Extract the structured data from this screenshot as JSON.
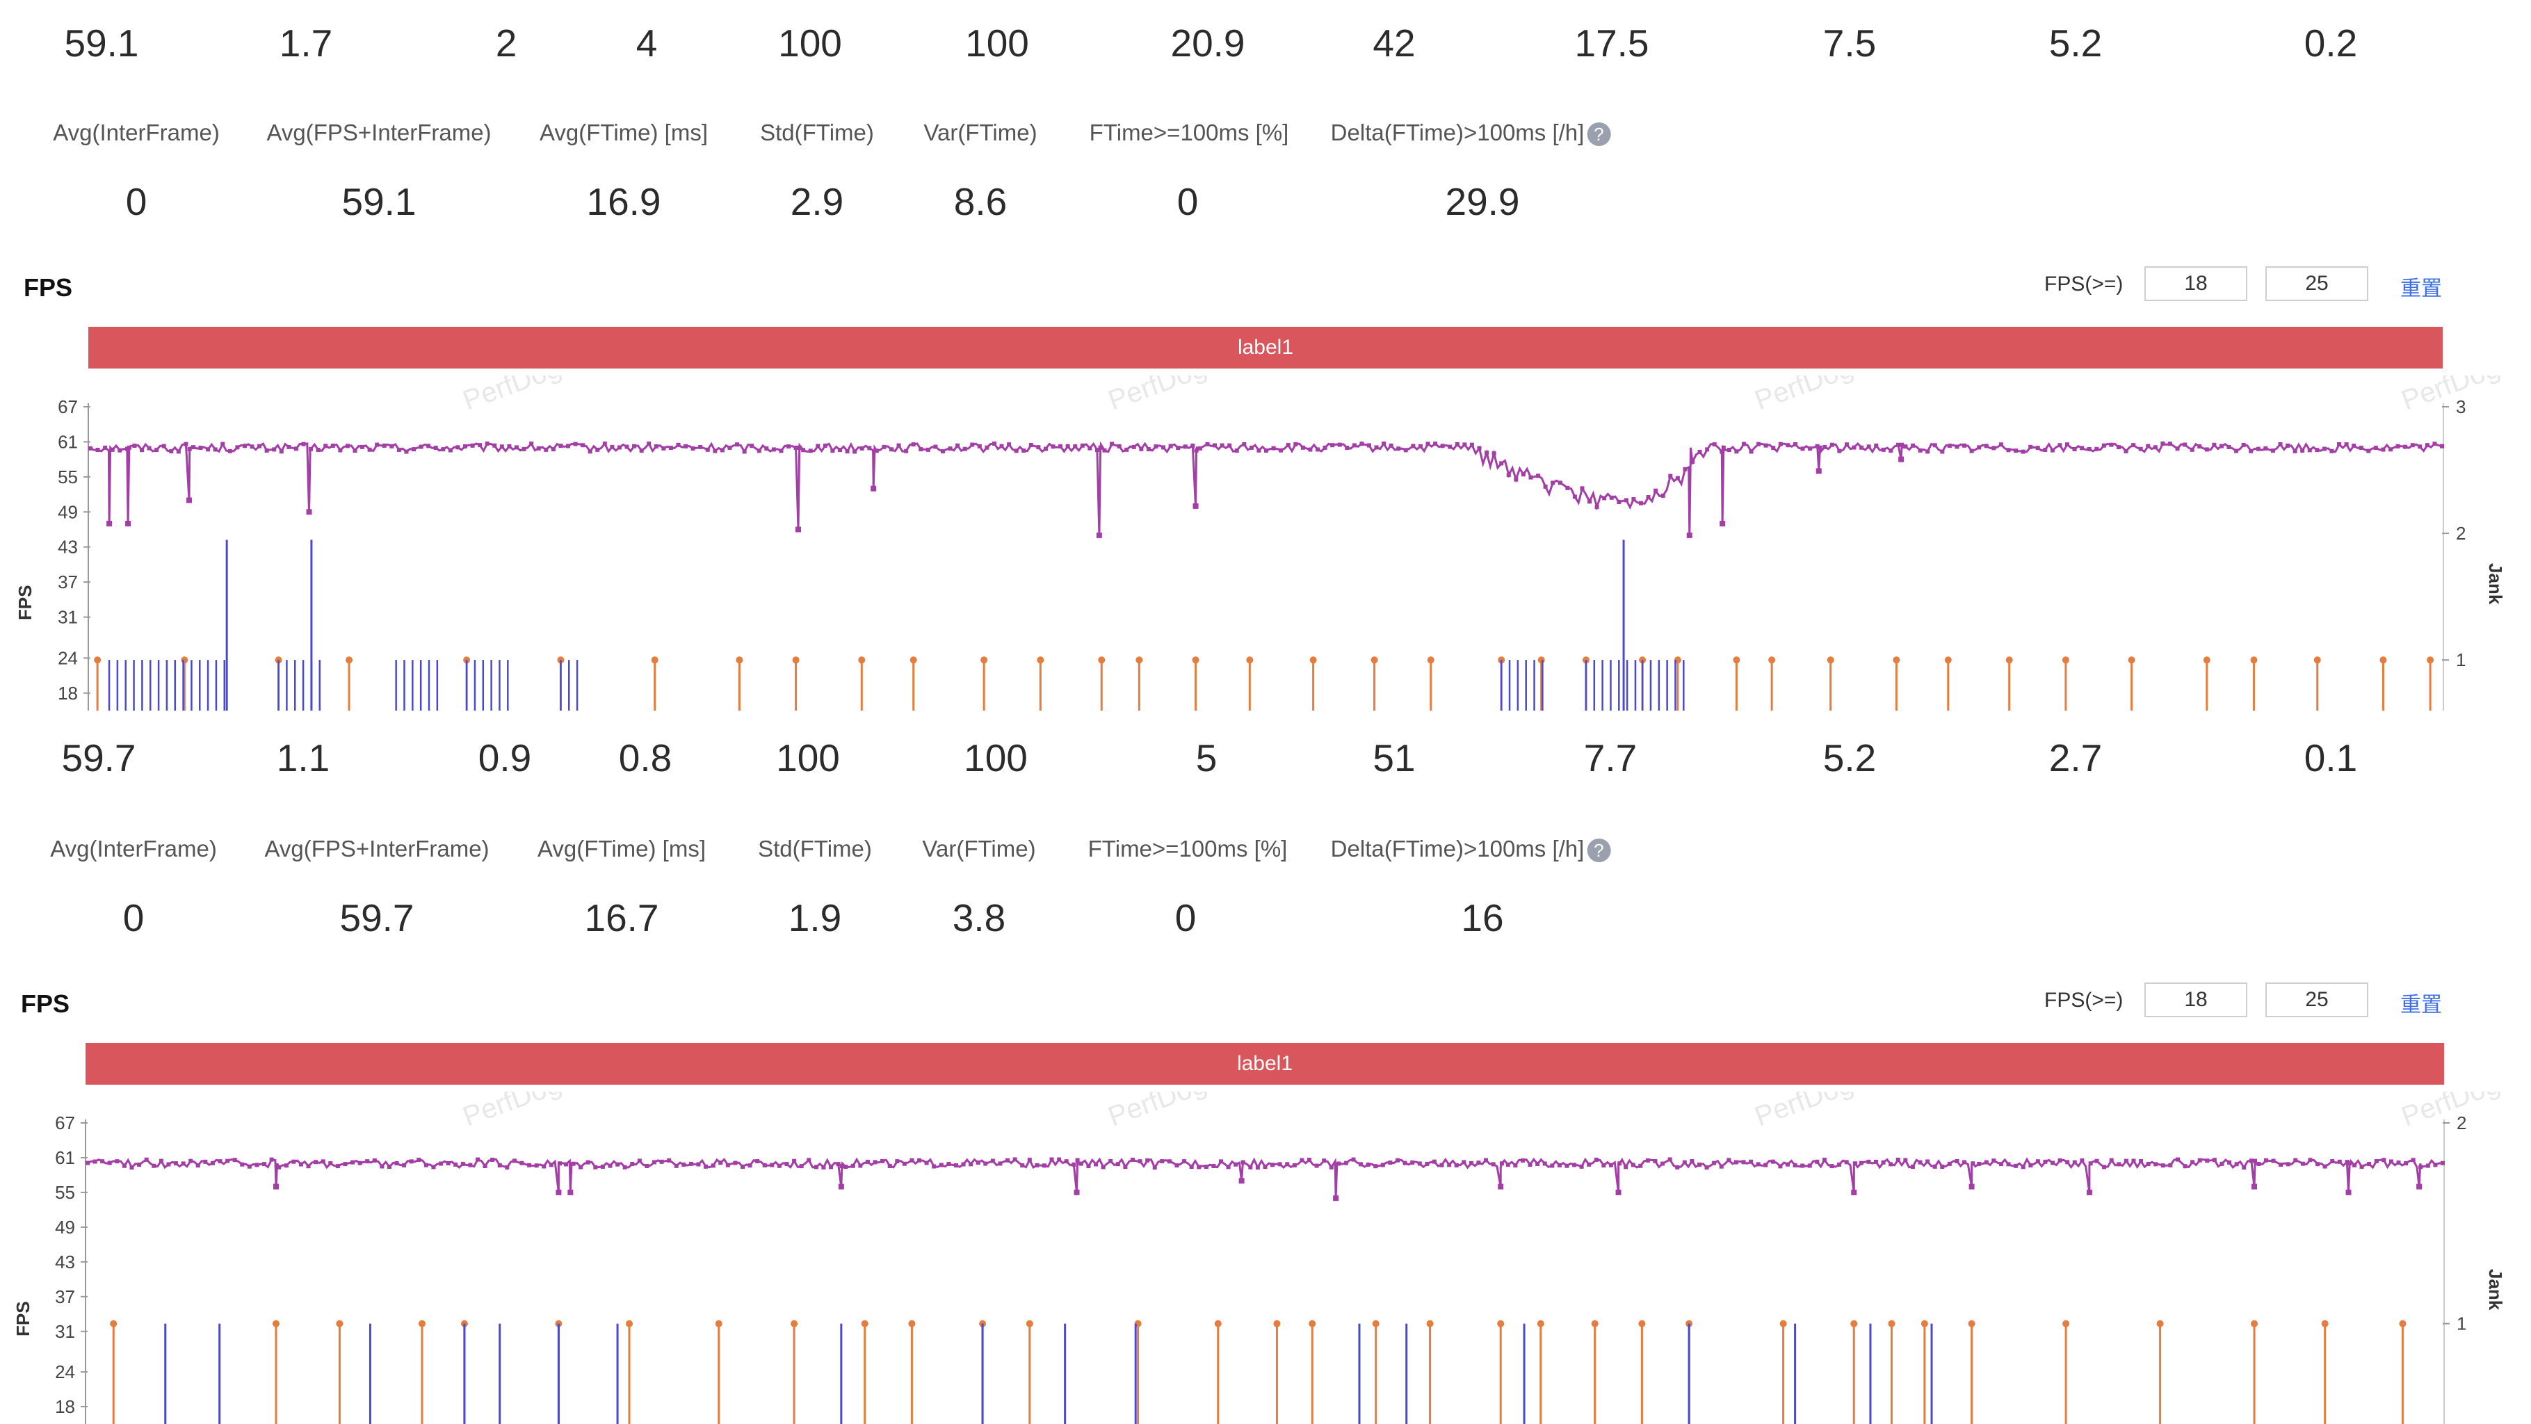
{
  "panels": [
    {
      "top_values": [
        "59.1",
        "1.7",
        "2",
        "4",
        "100",
        "100",
        "20.9",
        "42",
        "17.5",
        "7.5",
        "5.2",
        "0.2"
      ],
      "metrics": [
        {
          "label": "Avg(InterFrame)",
          "value": "0"
        },
        {
          "label": "Avg(FPS+InterFrame)",
          "value": "59.1"
        },
        {
          "label": "Avg(FTime) [ms]",
          "value": "16.9"
        },
        {
          "label": "Std(FTime)",
          "value": "2.9"
        },
        {
          "label": "Var(FTime)",
          "value": "8.6"
        },
        {
          "label": "FTime>=100ms [%]",
          "value": "0"
        },
        {
          "label": "Delta(FTime)>100ms [/h]",
          "value": "29.9"
        }
      ],
      "help_icon": "?",
      "fps_title": "FPS",
      "fps_ge_label": "FPS(>=)",
      "thresholds": [
        "18",
        "25"
      ],
      "reset_label": "重置",
      "segment_label": "label1",
      "y_axis_title": "FPS",
      "right_axis_title": "Jank",
      "y_ticks": [
        "67",
        "61",
        "55",
        "49",
        "43",
        "37",
        "31",
        "24",
        "18"
      ],
      "right_ticks": [
        "3",
        "2",
        "1"
      ],
      "watermark": "PerfDog"
    },
    {
      "top_values": [
        "59.7",
        "1.1",
        "0.9",
        "0.8",
        "100",
        "100",
        "5",
        "51",
        "7.7",
        "5.2",
        "2.7",
        "0.1"
      ],
      "metrics": [
        {
          "label": "Avg(InterFrame)",
          "value": "0"
        },
        {
          "label": "Avg(FPS+InterFrame)",
          "value": "59.7"
        },
        {
          "label": "Avg(FTime) [ms]",
          "value": "16.7"
        },
        {
          "label": "Std(FTime)",
          "value": "1.9"
        },
        {
          "label": "Var(FTime)",
          "value": "3.8"
        },
        {
          "label": "FTime>=100ms [%]",
          "value": "0"
        },
        {
          "label": "Delta(FTime)>100ms [/h]",
          "value": "16"
        }
      ],
      "help_icon": "?",
      "fps_title": "FPS",
      "fps_ge_label": "FPS(>=)",
      "thresholds": [
        "18",
        "25"
      ],
      "reset_label": "重置",
      "segment_label": "label1",
      "y_axis_title": "FPS",
      "right_axis_title": "Jank",
      "y_ticks": [
        "67",
        "61",
        "55",
        "49",
        "43",
        "37",
        "31",
        "24",
        "18"
      ],
      "right_ticks": [
        "2",
        "1"
      ],
      "watermark": "PerfDog"
    }
  ],
  "colors": {
    "fps_series": "#a23ea6",
    "jank": "#e47d3e",
    "big_jank": "#4a4ad0",
    "label_bar": "#d9575c",
    "reset_link": "#3b6ee8"
  },
  "chart_data": [
    {
      "type": "line",
      "title": "FPS",
      "ylabel": "FPS",
      "y2label": "Jank",
      "ylim": [
        15,
        67
      ],
      "y2lim": [
        0.6,
        3
      ],
      "segment": "label1",
      "fps_baseline": 60,
      "fps_dips": [
        {
          "x": 0.008,
          "y": 47
        },
        {
          "x": 0.016,
          "y": 47
        },
        {
          "x": 0.042,
          "y": 51
        },
        {
          "x": 0.093,
          "y": 49
        },
        {
          "x": 0.301,
          "y": 46
        },
        {
          "x": 0.333,
          "y": 53
        },
        {
          "x": 0.429,
          "y": 45
        },
        {
          "x": 0.47,
          "y": 50
        },
        {
          "x": 0.68,
          "y": 45
        },
        {
          "x": 0.694,
          "y": 47
        },
        {
          "x": 0.735,
          "y": 56
        },
        {
          "x": 0.77,
          "y": 58
        }
      ],
      "fps_trough": {
        "start": 0.585,
        "center": 0.652,
        "end": 0.69,
        "min_value": 51
      },
      "jank_markers": [
        0.003,
        0.04,
        0.08,
        0.11,
        0.16,
        0.2,
        0.24,
        0.276,
        0.3,
        0.328,
        0.35,
        0.38,
        0.404,
        0.43,
        0.446,
        0.47,
        0.493,
        0.52,
        0.546,
        0.57,
        0.6,
        0.617,
        0.636,
        0.66,
        0.675,
        0.7,
        0.715,
        0.74,
        0.768,
        0.79,
        0.816,
        0.84,
        0.868,
        0.9,
        0.92,
        0.947,
        0.975,
        0.995
      ],
      "big_jank_markers": [
        {
          "x": 0.058,
          "y": 1.95
        },
        {
          "x": 0.094,
          "y": 1.95
        },
        {
          "x": 0.652,
          "y": 1.95
        }
      ],
      "jank_clusters": [
        [
          0.008,
          0.06
        ],
        [
          0.08,
          0.1
        ],
        [
          0.13,
          0.15
        ],
        [
          0.16,
          0.18
        ],
        [
          0.2,
          0.21
        ],
        [
          0.6,
          0.62
        ],
        [
          0.636,
          0.66
        ],
        [
          0.66,
          0.68
        ]
      ]
    },
    {
      "type": "line",
      "title": "FPS",
      "ylabel": "FPS",
      "y2label": "Jank",
      "ylim": [
        15,
        67
      ],
      "y2lim": [
        0.5,
        2
      ],
      "segment": "label1",
      "fps_baseline": 60,
      "fps_dips": [
        {
          "x": 0.08,
          "y": 56
        },
        {
          "x": 0.2,
          "y": 55
        },
        {
          "x": 0.205,
          "y": 55
        },
        {
          "x": 0.32,
          "y": 56
        },
        {
          "x": 0.42,
          "y": 55
        },
        {
          "x": 0.49,
          "y": 57
        },
        {
          "x": 0.53,
          "y": 54
        },
        {
          "x": 0.6,
          "y": 56
        },
        {
          "x": 0.65,
          "y": 55
        },
        {
          "x": 0.75,
          "y": 55
        },
        {
          "x": 0.8,
          "y": 56
        },
        {
          "x": 0.85,
          "y": 55
        },
        {
          "x": 0.92,
          "y": 56
        },
        {
          "x": 0.96,
          "y": 55
        },
        {
          "x": 0.99,
          "y": 56
        }
      ],
      "jank_markers": [
        0.011,
        0.08,
        0.107,
        0.142,
        0.16,
        0.2,
        0.23,
        0.268,
        0.3,
        0.33,
        0.35,
        0.38,
        0.4,
        0.446,
        0.48,
        0.505,
        0.52,
        0.547,
        0.57,
        0.6,
        0.617,
        0.64,
        0.66,
        0.68,
        0.72,
        0.75,
        0.766,
        0.78,
        0.8,
        0.84,
        0.88,
        0.92,
        0.95,
        0.983
      ],
      "big_jank_markers": [
        {
          "x": 0.033,
          "y": 1.0
        },
        {
          "x": 0.056,
          "y": 1.0
        },
        {
          "x": 0.12,
          "y": 1.0
        },
        {
          "x": 0.16,
          "y": 1.0
        },
        {
          "x": 0.175,
          "y": 1.0
        },
        {
          "x": 0.2,
          "y": 1.0
        },
        {
          "x": 0.225,
          "y": 1.0
        },
        {
          "x": 0.32,
          "y": 1.0
        },
        {
          "x": 0.38,
          "y": 1.0
        },
        {
          "x": 0.415,
          "y": 1.0
        },
        {
          "x": 0.445,
          "y": 1.0
        },
        {
          "x": 0.54,
          "y": 1.0
        },
        {
          "x": 0.56,
          "y": 1.0
        },
        {
          "x": 0.61,
          "y": 1.0
        },
        {
          "x": 0.68,
          "y": 1.0
        },
        {
          "x": 0.725,
          "y": 1.0
        },
        {
          "x": 0.757,
          "y": 1.0
        },
        {
          "x": 0.783,
          "y": 1.0
        }
      ]
    }
  ]
}
